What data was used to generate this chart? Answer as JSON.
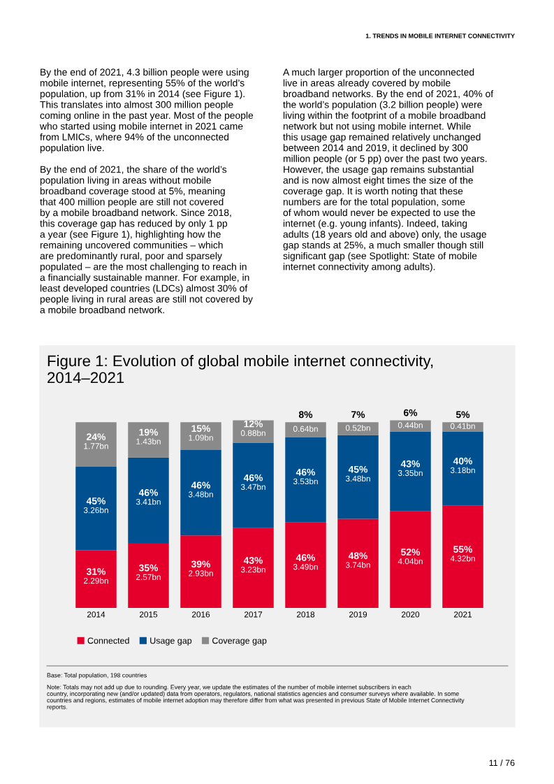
{
  "chart_data": {
    "type": "bar",
    "stacked": true,
    "title": "Figure 1: Evolution of global mobile internet connectivity,\n2014–2021",
    "categories": [
      "2014",
      "2015",
      "2016",
      "2017",
      "2018",
      "2019",
      "2020",
      "2021"
    ],
    "series": [
      {
        "name": "Connected",
        "color": "#e4002b",
        "values": [
          31,
          35,
          39,
          43,
          46,
          48,
          52,
          55
        ],
        "value_labels": [
          "31%\n2.29bn",
          "35%\n2.57bn",
          "39%\n2.93bn",
          "43%\n3.23bn",
          "46%\n3.49bn",
          "48%\n3.74bn",
          "52%\n4.04bn",
          "55%\n4.32bn"
        ]
      },
      {
        "name": "Usage gap",
        "color": "#004f8f",
        "values": [
          45,
          46,
          46,
          46,
          46,
          45,
          43,
          40
        ],
        "value_labels": [
          "45%\n3.26bn",
          "46%\n3.41bn",
          "46%\n3.48bn",
          "46%\n3.47bn",
          "46%\n3.53bn",
          "45%\n3.48bn",
          "43%\n3.35bn",
          "40%\n3.18bn"
        ]
      },
      {
        "name": "Coverage gap",
        "color": "#8a8a8a",
        "values": [
          24,
          19,
          15,
          12,
          8,
          7,
          6,
          5
        ],
        "value_labels": [
          "24%\n1.77bn",
          "19%\n1.43bn",
          "15%\n1.09bn",
          "12%\n0.88bn",
          "8%\n0.64bn",
          "7%\n0.52bn",
          "6%\n0.44bn",
          "5%\n0.41bn"
        ]
      }
    ],
    "legend": "bottom",
    "annotations": [
      "1. TRENDS IN MOBILE INTERNET CONNECTIVITY",
      "By the end of 2021, 4.3 billion people were using\nmobile internet, representing 55% of the world’s\npopulation, up from 31% in 2014 (see Figure 1).\nThis translates into almost 300 million people\ncoming online in the past year. Most of the people\nwho started using mobile internet in 2021 came\nfrom LMICs, where 94% of the unconnected\npopulation live.\n\nBy the end of 2021, the share of the world’s\npopulation living in areas without mobile\nbroadband coverage stood at 5%, meaning\nthat 400 million people are still not covered\nby a mobile broadband network. Since 2018,\nthis coverage gap has reduced by only 1 pp\na year (see Figure 1), highlighting how the\nremaining uncovered communities – which\nare predominantly rural, poor and sparsely\npopulated – are the most challenging to reach in\na financially sustainable manner. For example, in\nleast developed countries (LDCs) almost 30% of\npeople living in rural areas are still not covered by\na mobile broadband network.",
      "A much larger proportion of the unconnected\nlive in areas already covered by mobile\nbroadband networks. By the end of 2021, 40% of\nthe world’s population (3.2 billion people) were\nliving within the footprint of a mobile broadband\nnetwork but not using mobile internet. While\nthis usage gap remained relatively unchanged\nbetween 2014 and 2019, it declined by 300\nmillion people (or 5 pp) over the past two years.\nHowever, the usage gap remains substantial\nand is now almost eight times the size of the\ncoverage gap. It is worth noting that these\nnumbers are for the total population, some\nof whom would never be expected to use the\ninternet (e.g. young infants). Indeed, taking\nadults (18 years old and above) only, the usage\ngap stands at 25%, a much smaller though still\nsignificant gap (see Spotlight: State of mobile\ninternet connectivity among adults).",
      "Base: Total population, 198 countries",
      "Note: Totals may not add up due to rounding. Every year, we update the estimates of the number of mobile internet subscribers in each\ncountry, incorporating new (and/or updated) data from operators, regulators, national statistics agencies and consumer surveys where available. In some\ncountries and regions, estimates of mobile internet adoption may therefore differ from what was presented in previous State of Mobile Internet Connectivity\nreports.",
      "11 / 76"
    ]
  }
}
